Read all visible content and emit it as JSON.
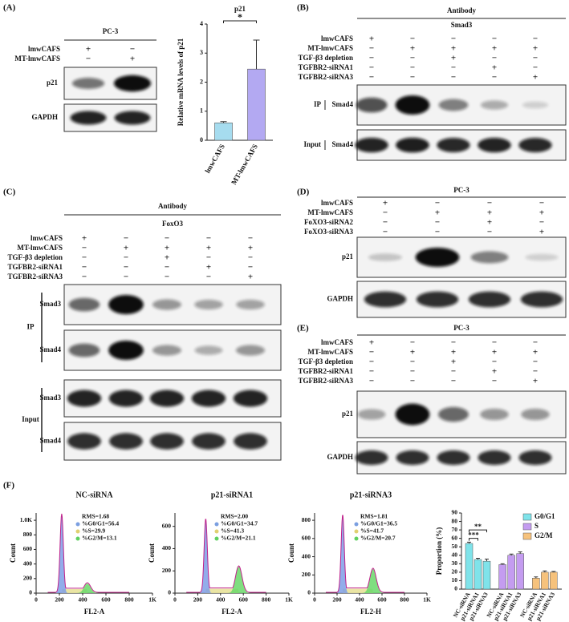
{
  "panel_labels": [
    "(A)",
    "(B)",
    "(C)",
    "(D)",
    "(E)",
    "(F)"
  ],
  "blots": [
    {
      "title": "PC-3",
      "conditions": [
        {
          "name": "lmwCAFS",
          "signs": [
            "+",
            "−"
          ]
        },
        {
          "name": "MT-lmwCAFS",
          "signs": [
            "−",
            "+"
          ]
        }
      ],
      "groups": [
        {
          "rows": [
            "p21",
            "GAPDH"
          ]
        }
      ]
    },
    {
      "title": "Antibody",
      "subtitle": "Smad3",
      "conditions": [
        {
          "name": "lmwCAFS",
          "signs": [
            "+",
            "−",
            "−",
            "−",
            "−"
          ]
        },
        {
          "name": "MT-lmwCAFS",
          "signs": [
            "−",
            "+",
            "+",
            "+",
            "+"
          ]
        },
        {
          "name": "TGF-β3 depletion",
          "signs": [
            "−",
            "−",
            "+",
            "−",
            "−"
          ]
        },
        {
          "name": "TGFBR2-siRNA1",
          "signs": [
            "−",
            "−",
            "−",
            "+",
            "−"
          ]
        },
        {
          "name": "TGFBR2-siRNA3",
          "signs": [
            "−",
            "−",
            "−",
            "−",
            "+"
          ]
        }
      ],
      "groups": [
        {
          "name": "IP",
          "rows": [
            "Smad4"
          ]
        },
        {
          "name": "Input",
          "rows": [
            "Smad4"
          ]
        }
      ]
    },
    {
      "title": "Antibody",
      "subtitle": "FoxO3",
      "conditions": [
        {
          "name": "lmwCAFS",
          "signs": [
            "+",
            "−",
            "−",
            "−",
            "−"
          ]
        },
        {
          "name": "MT-lmwCAFS",
          "signs": [
            "−",
            "+",
            "+",
            "+",
            "+"
          ]
        },
        {
          "name": "TGF-β3 depletion",
          "signs": [
            "−",
            "−",
            "+",
            "−",
            "−"
          ]
        },
        {
          "name": "TGFBR2-siRNA1",
          "signs": [
            "−",
            "−",
            "−",
            "+",
            "−"
          ]
        },
        {
          "name": "TGFBR2-siRNA3",
          "signs": [
            "−",
            "−",
            "−",
            "−",
            "+"
          ]
        }
      ],
      "groups": [
        {
          "name": "IP",
          "rows": [
            "Smad3",
            "Smad4"
          ]
        },
        {
          "name": "Input",
          "rows": [
            "Smad3",
            "Smad4"
          ]
        }
      ]
    },
    {
      "title": "PC-3",
      "conditions": [
        {
          "name": "lmwCAFS",
          "signs": [
            "+",
            "−",
            "−",
            "−"
          ]
        },
        {
          "name": "MT-lmwCAFS",
          "signs": [
            "−",
            "+",
            "+",
            "+"
          ]
        },
        {
          "name": "FoXO3-siRNA2",
          "signs": [
            "−",
            "−",
            "+",
            "−"
          ]
        },
        {
          "name": "FoXO3-siRNA3",
          "signs": [
            "−",
            "−",
            "−",
            "+"
          ]
        }
      ],
      "groups": [
        {
          "rows": [
            "p21",
            "GAPDH"
          ]
        }
      ]
    },
    {
      "title": "PC-3",
      "conditions": [
        {
          "name": "lmwCAFS",
          "signs": [
            "+",
            "−",
            "−",
            "−",
            "−"
          ]
        },
        {
          "name": "MT-lmwCAFS",
          "signs": [
            "−",
            "+",
            "+",
            "+",
            "+"
          ]
        },
        {
          "name": "TGF-β3 depletion",
          "signs": [
            "−",
            "−",
            "+",
            "−",
            "−"
          ]
        },
        {
          "name": "TGFBR2-siRNA1",
          "signs": [
            "−",
            "−",
            "−",
            "+",
            "−"
          ]
        },
        {
          "name": "TGFBR2-siRNA3",
          "signs": [
            "−",
            "−",
            "−",
            "−",
            "+"
          ]
        }
      ],
      "groups": [
        {
          "rows": [
            "p21",
            "GAPDH"
          ]
        }
      ]
    }
  ],
  "chart_data": [
    {
      "type": "bar",
      "title": "p21",
      "y_label": "Relative mRNA levels of p21",
      "categories": [
        "lmwCAFS",
        "MT-lmwCAFS"
      ],
      "values": [
        0.6,
        2.45
      ],
      "errors": [
        0.04,
        1.0
      ],
      "colors": [
        "#a6dcef",
        "#b3a9f2"
      ],
      "ylim": [
        0,
        4
      ],
      "yticks": [
        0,
        1,
        2,
        3,
        4
      ],
      "significance": "*"
    },
    {
      "type": "flow_histogram",
      "title": "NC-siRNA",
      "x_label": "FL2-A",
      "y_label": "Count",
      "stats": [
        "RMS=1.68",
        "%G0/G1=56.4",
        "%S=29.9",
        "%G2/M=13.1"
      ],
      "xlim": [
        0,
        1000
      ],
      "xticks": [
        0,
        200,
        400,
        600,
        800,
        {
          "value": 1000,
          "label": "1K"
        }
      ],
      "ylim": [
        0,
        1100
      ],
      "yticks": [
        0,
        200,
        400,
        600,
        800,
        {
          "value": 1000,
          "label": "1.0K"
        }
      ]
    },
    {
      "type": "flow_histogram",
      "title": "p21-siRNA1",
      "x_label": "FL2-A",
      "y_label": "Count",
      "stats": [
        "RMS=2.00",
        "%G0/G1=34.7",
        "%S=41.3",
        "%G2/M=21.1"
      ],
      "xlim": [
        0,
        1000
      ],
      "xticks": [
        0,
        200,
        400,
        600,
        800,
        {
          "value": 1000,
          "label": "1K"
        }
      ],
      "ylim": [
        0,
        720
      ],
      "yticks": [
        0,
        200,
        400,
        600
      ]
    },
    {
      "type": "flow_histogram",
      "title": "p21-siRNA3",
      "x_label": "FL2-H",
      "y_label": "Count",
      "stats": [
        "RMS=1.81",
        "%G0/G1=36.5",
        "%S=41.7",
        "%G2/M=20.7"
      ],
      "xlim": [
        0,
        1000
      ],
      "xticks": [
        0,
        200,
        400,
        600,
        800,
        {
          "value": 1000,
          "label": "1K"
        }
      ],
      "ylim": [
        0,
        880
      ],
      "yticks": [
        0,
        200,
        400,
        600,
        800
      ]
    },
    {
      "type": "grouped_bar",
      "y_label": "Proportion (%)",
      "categories": [
        "NC-siRNA",
        "p21-siRNA1",
        "p21-siRNA3"
      ],
      "series": [
        {
          "name": "G0/G1",
          "color": "#7fe3ea",
          "values": [
            54,
            35,
            33
          ],
          "errors": [
            1.5,
            1.5,
            2.5
          ]
        },
        {
          "name": "S",
          "color": "#c49cf0",
          "values": [
            29,
            40,
            42
          ],
          "errors": [
            1,
            1.5,
            2
          ]
        },
        {
          "name": "G2/M",
          "color": "#f6c27c",
          "values": [
            13,
            20,
            20
          ],
          "errors": [
            1.5,
            1.5,
            1
          ]
        }
      ],
      "ylim": [
        0,
        90
      ],
      "yticks": [
        0,
        10,
        20,
        30,
        40,
        50,
        60,
        70,
        80,
        90
      ],
      "significance": [
        "***",
        "**"
      ]
    }
  ]
}
